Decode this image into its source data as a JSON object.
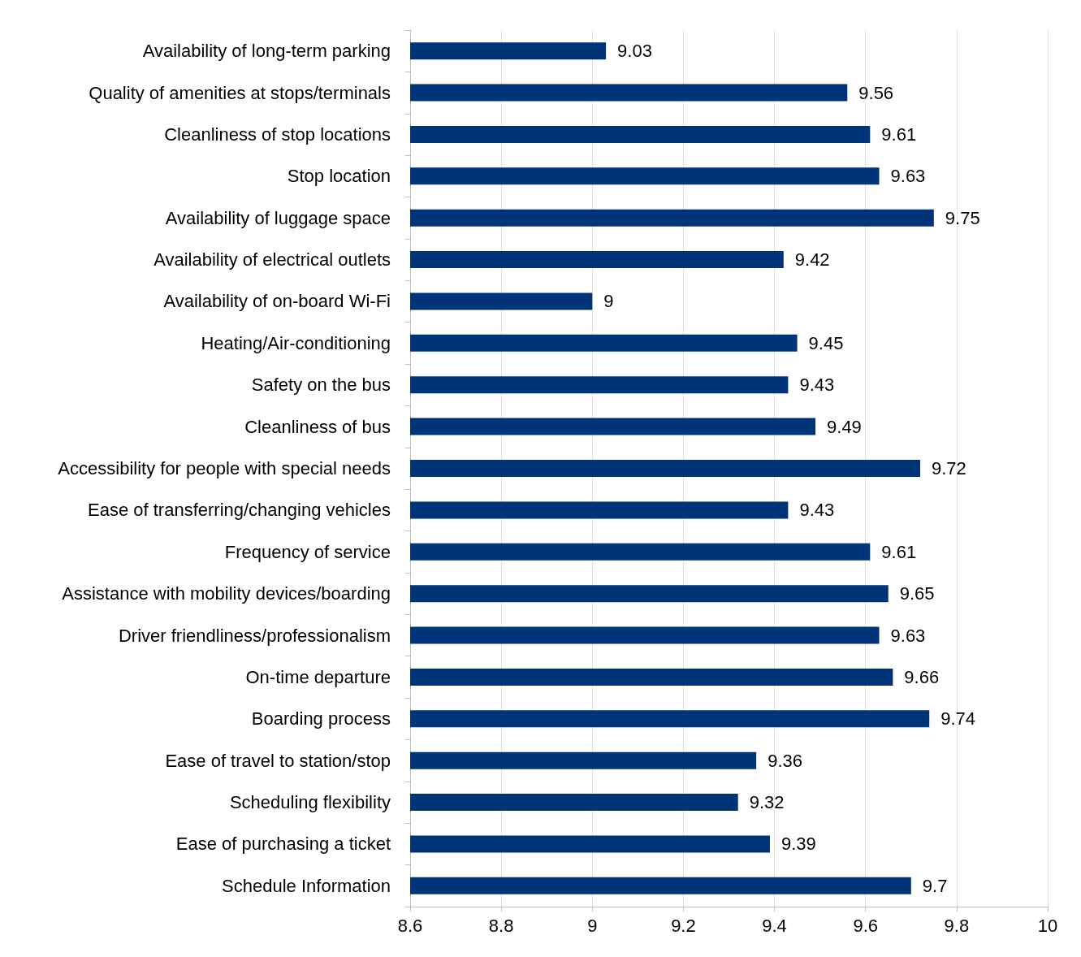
{
  "chart_data": {
    "type": "bar",
    "orientation": "horizontal",
    "categories": [
      "Availability of long-term parking",
      "Quality of amenities at stops/terminals",
      "Cleanliness of stop locations",
      "Stop location",
      "Availability of luggage space",
      "Availability of electrical outlets",
      "Availability of on-board Wi-Fi",
      "Heating/Air-conditioning",
      "Safety on the bus",
      "Cleanliness of bus",
      "Accessibility for people with special needs",
      "Ease of transferring/changing vehicles",
      "Frequency of service",
      "Assistance with mobility devices/boarding",
      "Driver friendliness/professionalism",
      "On-time departure",
      "Boarding process",
      "Ease of travel to station/stop",
      "Scheduling flexibility",
      "Ease of purchasing a ticket",
      "Schedule Information"
    ],
    "values": [
      9.03,
      9.56,
      9.61,
      9.63,
      9.75,
      9.42,
      9,
      9.45,
      9.43,
      9.49,
      9.72,
      9.43,
      9.61,
      9.65,
      9.63,
      9.66,
      9.74,
      9.36,
      9.32,
      9.39,
      9.7
    ],
    "color": "#003478",
    "xlim": [
      8.6,
      10
    ],
    "xticks": [
      8.6,
      8.8,
      9,
      9.2,
      9.4,
      9.6,
      9.8,
      10
    ],
    "grid": "x",
    "data_labels": true
  }
}
